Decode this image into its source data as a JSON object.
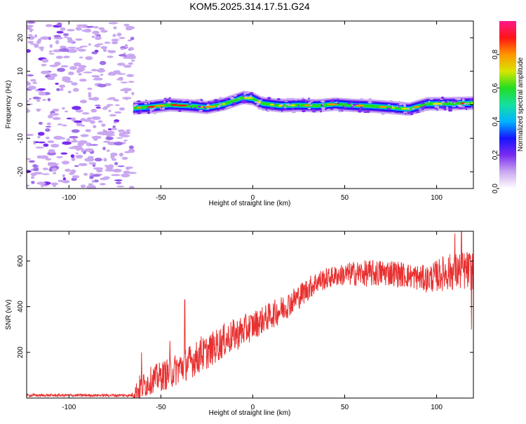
{
  "title": "KOM5.2025.314.17.51.G24",
  "chart_data": [
    {
      "type": "heatmap",
      "name": "spectrogram",
      "xlabel": "Height of straight line (km)",
      "ylabel": "Frequency (Hz)",
      "xlim": [
        -123,
        120
      ],
      "ylim": [
        -25,
        25
      ],
      "xticks": [
        -100,
        -50,
        0,
        50,
        100
      ],
      "yticks": [
        -20,
        -10,
        0,
        10,
        20
      ],
      "noise_region_x": [
        -123,
        -65
      ],
      "signal_start_x": -65,
      "trace": {
        "x": [
          -65,
          -55,
          -45,
          -35,
          -25,
          -15,
          -5,
          0,
          5,
          15,
          25,
          35,
          45,
          55,
          65,
          75,
          85,
          95,
          105,
          120
        ],
        "y": [
          -1.0,
          -0.6,
          0.0,
          -0.3,
          -0.8,
          0.3,
          2.2,
          1.8,
          0.4,
          -0.3,
          -0.1,
          -0.3,
          0.2,
          -0.2,
          -0.4,
          -0.8,
          -1.3,
          0.3,
          0.3,
          0.5
        ]
      },
      "colorbar": {
        "label": "Normalized spectral amplitude",
        "range": [
          0,
          1
        ],
        "ticks": [
          "0.0",
          "0.2",
          "0.4",
          "0.6",
          "0.8"
        ],
        "tick_values": [
          0.0,
          0.2,
          0.4,
          0.6,
          0.8
        ]
      },
      "palette": [
        "#ffffff",
        "#c9a8f0",
        "#7a2cf0",
        "#1414ff",
        "#00b4ff",
        "#14e0a0",
        "#22dd22",
        "#d8e600",
        "#ff9600",
        "#ff1414",
        "#ff1a8c"
      ]
    },
    {
      "type": "line",
      "name": "snr",
      "xlabel": "Height of straight line (km)",
      "ylabel": "SNR (v/v)",
      "xlim": [
        -123,
        120
      ],
      "ylim": [
        0,
        730
      ],
      "xticks": [
        -100,
        -50,
        0,
        50,
        100
      ],
      "yticks": [
        200,
        400,
        600
      ],
      "color": "#e83030",
      "envelope": {
        "x": [
          -123,
          -66,
          -62,
          -55,
          -45,
          -35,
          -25,
          -15,
          -5,
          5,
          15,
          25,
          35,
          45,
          55,
          65,
          75,
          85,
          95,
          105,
          120
        ],
        "mean": [
          12,
          12,
          40,
          80,
          110,
          155,
          200,
          255,
          295,
          340,
          385,
          445,
          510,
          535,
          545,
          545,
          550,
          535,
          520,
          550,
          560
        ],
        "amplitude": [
          6,
          6,
          60,
          60,
          70,
          75,
          75,
          75,
          70,
          60,
          60,
          55,
          50,
          45,
          55,
          60,
          60,
          55,
          60,
          80,
          90
        ]
      },
      "spikes": [
        {
          "x": -60.5,
          "y": 200
        },
        {
          "x": -37,
          "y": 430
        },
        {
          "x": -45,
          "y": 250
        },
        {
          "x": -28,
          "y": 270
        },
        {
          "x": 113.5,
          "y": 730
        },
        {
          "x": 119,
          "y": 300
        },
        {
          "x": 110,
          "y": 720
        }
      ]
    }
  ]
}
